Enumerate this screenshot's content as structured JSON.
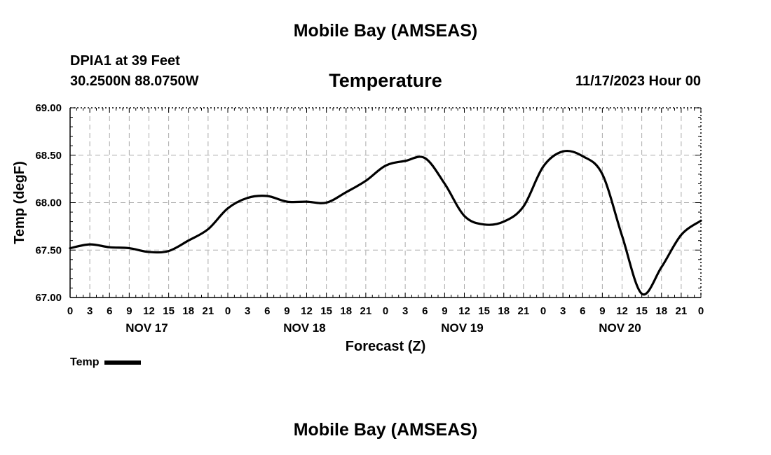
{
  "header": {
    "title": "Mobile Bay (AMSEAS)",
    "station": "DPIA1 at 39 Feet",
    "coords": "30.2500N  88.0750W",
    "panel_title": "Temperature",
    "run_time": "11/17/2023 Hour 00"
  },
  "footer": {
    "title": "Mobile Bay (AMSEAS)"
  },
  "chart_data": {
    "type": "line",
    "title": "Temperature",
    "xlabel": "Forecast (Z)",
    "ylabel": "Temp (degF)",
    "ylim": [
      67.0,
      69.0
    ],
    "xlim": [
      0,
      96
    ],
    "x_unit": "hours since NOV 17 00Z",
    "y_ticks": [
      "67.00",
      "67.50",
      "68.00",
      "68.50",
      "69.00"
    ],
    "x_tick_labels": [
      "0",
      "3",
      "6",
      "9",
      "12",
      "15",
      "18",
      "21",
      "0",
      "3",
      "6",
      "9",
      "12",
      "15",
      "18",
      "21",
      "0",
      "3",
      "6",
      "9",
      "12",
      "15",
      "18",
      "21",
      "0",
      "3",
      "6",
      "9",
      "12",
      "15",
      "18",
      "21",
      "0"
    ],
    "day_labels": [
      "NOV 17",
      "NOV 18",
      "NOV 19",
      "NOV 20"
    ],
    "grid": true,
    "legend_position": "bottom-left",
    "series": [
      {
        "name": "Temp",
        "color": "#000000",
        "x": [
          0,
          3,
          6,
          9,
          12,
          15,
          18,
          21,
          24,
          27,
          30,
          33,
          36,
          39,
          42,
          45,
          48,
          51,
          54,
          57,
          60,
          63,
          66,
          69,
          72,
          75,
          78,
          81,
          84,
          87,
          90,
          93,
          96
        ],
        "values": [
          67.52,
          67.56,
          67.53,
          67.52,
          67.48,
          67.49,
          67.6,
          67.72,
          67.94,
          68.05,
          68.07,
          68.01,
          68.01,
          68.0,
          68.11,
          68.23,
          68.39,
          68.44,
          68.47,
          68.2,
          67.86,
          67.77,
          67.8,
          67.96,
          68.38,
          68.54,
          68.49,
          68.3,
          67.65,
          67.04,
          67.32,
          67.66,
          67.81
        ]
      }
    ]
  }
}
